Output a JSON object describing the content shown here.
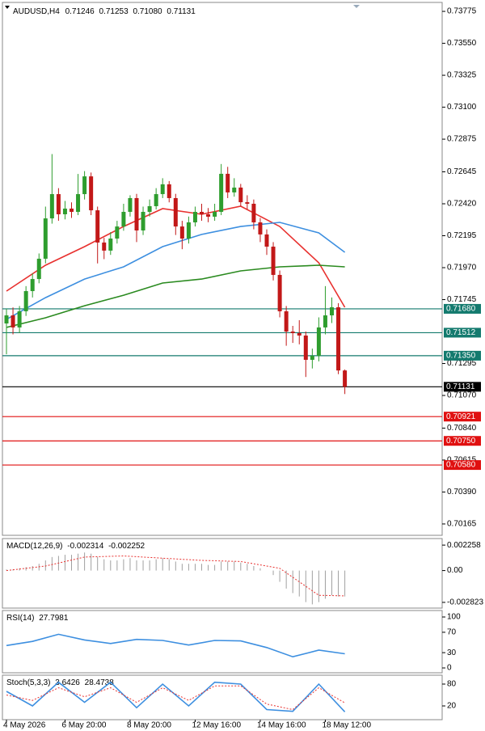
{
  "chart_data": [
    {
      "type": "candlestick",
      "header": {
        "symbol": "AUDUSD,H4",
        "values": [
          0.71246,
          0.71253,
          0.7108,
          0.71131
        ],
        "value_labels": [
          "0.71246",
          "0.71253",
          "0.71080",
          "0.71131"
        ]
      },
      "categories": [
        "4 May 2026",
        null,
        null,
        null,
        null,
        null,
        null,
        null,
        null,
        "6 May 20:00",
        null,
        null,
        null,
        null,
        null,
        null,
        null,
        null,
        null,
        "8 May 20:00",
        null,
        null,
        null,
        null,
        null,
        null,
        null,
        null,
        null,
        "12 May 16:00",
        null,
        null,
        null,
        null,
        null,
        null,
        null,
        null,
        null,
        "14 May 16:00",
        null,
        null,
        null,
        null,
        null,
        null,
        null,
        null,
        null,
        "18 May 12:00",
        null,
        null,
        null
      ],
      "open": [
        0.71577,
        0.71634,
        0.71549,
        0.71663,
        0.71805,
        0.7189,
        0.72033,
        0.72317,
        0.72488,
        0.72346,
        0.72386,
        0.72363,
        0.72488,
        0.72613,
        0.72374,
        0.72147,
        0.7209,
        0.72175,
        0.7226,
        0.72363,
        0.7246,
        0.72232,
        0.72363,
        0.72403,
        0.72488,
        0.72557,
        0.7246,
        0.7226,
        0.72175,
        0.72289,
        0.72363,
        0.72346,
        0.72329,
        0.72363,
        0.72631,
        0.725,
        0.72534,
        0.72431,
        0.7242,
        0.72289,
        0.72204,
        0.72118,
        0.71919,
        0.71663,
        0.7152,
        0.71509,
        0.71492,
        0.71321,
        0.71349,
        0.71549,
        0.71634,
        0.71691,
        0.71246
      ],
      "high": [
        0.7168,
        0.7169,
        0.717,
        0.7184,
        0.7193,
        0.7207,
        0.724,
        0.7277,
        0.7253,
        0.7244,
        0.7243,
        0.7263,
        0.7265,
        0.7264,
        0.724,
        0.7218,
        0.7222,
        0.723,
        0.7242,
        0.7248,
        0.7249,
        0.724,
        0.7245,
        0.7253,
        0.726,
        0.7258,
        0.7249,
        0.723,
        0.7233,
        0.724,
        0.7242,
        0.7239,
        0.7242,
        0.727,
        0.7268,
        0.726,
        0.7256,
        0.7248,
        0.7245,
        0.7232,
        0.7224,
        0.7215,
        0.7195,
        0.717,
        0.7156,
        0.716,
        0.7152,
        0.714,
        0.7162,
        0.7184,
        0.7176,
        0.7172,
        0.71253
      ],
      "low": [
        0.7136,
        0.715,
        0.7151,
        0.7163,
        0.7176,
        0.7186,
        0.72,
        0.7228,
        0.723,
        0.7231,
        0.7232,
        0.7234,
        0.7245,
        0.7234,
        0.72,
        0.7203,
        0.7206,
        0.7214,
        0.7223,
        0.7233,
        0.7215,
        0.722,
        0.7233,
        0.7238,
        0.7246,
        0.7243,
        0.722,
        0.721,
        0.7214,
        0.7226,
        0.723,
        0.7229,
        0.723,
        0.7234,
        0.7246,
        0.7247,
        0.724,
        0.7238,
        0.7224,
        0.7215,
        0.7206,
        0.7188,
        0.7162,
        0.7142,
        0.7144,
        0.7143,
        0.712,
        0.7126,
        0.7131,
        0.715,
        0.7158,
        0.7122,
        0.7108
      ],
      "close": [
        0.71634,
        0.71549,
        0.71663,
        0.71805,
        0.7189,
        0.72033,
        0.72317,
        0.72488,
        0.72346,
        0.72386,
        0.72363,
        0.72488,
        0.72613,
        0.72374,
        0.72147,
        0.7209,
        0.72175,
        0.7226,
        0.72363,
        0.7246,
        0.72232,
        0.72363,
        0.72403,
        0.72488,
        0.72557,
        0.7246,
        0.7226,
        0.72175,
        0.72289,
        0.72363,
        0.72346,
        0.72329,
        0.72363,
        0.72631,
        0.725,
        0.72534,
        0.72431,
        0.7242,
        0.72289,
        0.72204,
        0.72118,
        0.71919,
        0.71663,
        0.7152,
        0.71509,
        0.71492,
        0.71321,
        0.71349,
        0.71549,
        0.71634,
        0.71691,
        0.71246,
        0.71131
      ],
      "up_color": "#2e9d2e",
      "down_color": "#c21818",
      "ma": [
        {
          "color": "#e8312f",
          "x": [
            0,
            6,
            12,
            18,
            24,
            30,
            36,
            42,
            48,
            52
          ],
          "values": [
            0.71805,
            0.71987,
            0.72118,
            0.7226,
            0.72386,
            0.72346,
            0.72403,
            0.7226,
            0.72004,
            0.71691
          ]
        },
        {
          "color": "#3d8fe0",
          "x": [
            0,
            6,
            12,
            18,
            24,
            30,
            36,
            42,
            48,
            52
          ],
          "values": [
            0.71606,
            0.71759,
            0.7189,
            0.71976,
            0.72118,
            0.72204,
            0.7226,
            0.72289,
            0.72215,
            0.72078
          ]
        },
        {
          "color": "#2a8a1f",
          "x": [
            0,
            6,
            12,
            18,
            24,
            30,
            36,
            42,
            48,
            52
          ],
          "values": [
            0.71549,
            0.71617,
            0.71702,
            0.71776,
            0.71862,
            0.7189,
            0.71947,
            0.71976,
            0.71987,
            0.71976
          ]
        }
      ],
      "levels": [
        {
          "value": 0.7168,
          "label": "0.71680",
          "color": "#137a6e"
        },
        {
          "value": 0.71512,
          "color": "#137a6e"
        },
        {
          "value": 0.7135,
          "label": "0.71350",
          "color": "#137a6e"
        },
        {
          "value": 0.71131,
          "color": "#000000"
        },
        {
          "value": 0.70921,
          "color": "#e01010"
        },
        {
          "value": 0.7075,
          "label": "0.70750",
          "color": "#e01010"
        },
        {
          "value": 0.7058,
          "label": "0.70580",
          "color": "#e01010"
        }
      ],
      "ylim": [
        0.70085,
        0.73838
      ],
      "yticks": [
        0.73775,
        {
          "value": 0.7355,
          "label": "0.73550"
        },
        0.73325,
        {
          "value": 0.731,
          "label": "0.73100"
        },
        0.72875,
        0.72645,
        {
          "value": 0.7242,
          "label": "0.72420"
        },
        0.72195,
        {
          "value": 0.7197,
          "label": "0.71970"
        },
        0.71745,
        0.71295,
        {
          "value": 0.7107,
          "label": "0.71070"
        },
        {
          "value": 0.7084,
          "label": "0.70840"
        },
        0.70615,
        {
          "value": 0.7039,
          "label": "0.70390"
        },
        0.70165
      ]
    },
    {
      "type": "macd",
      "title": "MACD(12,26,9)",
      "main_value": -0.002314,
      "signal_value": -0.002252,
      "values": [
        0.0001,
        0.0001,
        0.0002,
        0.0003,
        0.0004,
        0.0006,
        0.0009,
        0.0012,
        0.0013,
        0.0014,
        0.0014,
        0.0015,
        0.0016,
        0.0015,
        0.0012,
        0.001,
        0.0009,
        0.0009,
        0.001,
        0.0011,
        0.0009,
        0.0009,
        0.0009,
        0.001,
        0.0011,
        0.001,
        0.0008,
        0.0006,
        0.0006,
        0.0006,
        0.0006,
        0.0005,
        0.0005,
        0.0008,
        0.0008,
        0.0008,
        0.0007,
        0.0006,
        0.0004,
        0.0002,
        0,
        -0.0004,
        -0.001,
        -0.0016,
        -0.002,
        -0.0023,
        -0.0028,
        -0.003,
        -0.0028,
        -0.0025,
        -0.0022,
        -0.0023,
        -0.0023
      ],
      "color": "#a0a0a0",
      "signal": {
        "color": "#e8312f",
        "x": [
          0,
          6,
          12,
          18,
          24,
          30,
          36,
          42,
          48,
          52
        ],
        "values": [
          0,
          0.0004,
          0.0012,
          0.0013,
          0.0011,
          0.0009,
          0.0008,
          0.0002,
          -0.0022,
          -0.00225
        ]
      },
      "ylim": [
        -0.00333,
        0.00284
      ],
      "yticks": [
        0.002258,
        {
          "value": 0,
          "label": "0.00"
        },
        -0.002823
      ]
    },
    {
      "type": "rsi",
      "title": "RSI(14)",
      "current": 27.7981,
      "x": [
        0,
        4,
        8,
        12,
        16,
        20,
        24,
        28,
        32,
        36,
        40,
        44,
        48,
        52
      ],
      "values": [
        44,
        52,
        66,
        55,
        48,
        56,
        54,
        45,
        54,
        53,
        40,
        22,
        35,
        27.7981
      ],
      "color": "#3d8fe0",
      "ylim": [
        -9.5,
        112.7
      ],
      "yticks": [
        100,
        70,
        30,
        0
      ]
    },
    {
      "type": "stochastic",
      "title": "Stoch(5,3,3)",
      "main_current": 3.6426,
      "signal_current": 28.4738,
      "x": [
        0,
        4,
        8,
        12,
        16,
        20,
        24,
        28,
        32,
        36,
        40,
        44,
        48,
        52
      ],
      "main": {
        "color": "#3d8fe0",
        "values": [
          60,
          20,
          85,
          30,
          85,
          15,
          80,
          20,
          85,
          80,
          10,
          5,
          80,
          3.6426
        ]
      },
      "signal": {
        "color": "#e8312f",
        "values": [
          50,
          35,
          70,
          45,
          70,
          30,
          70,
          35,
          75,
          75,
          25,
          10,
          70,
          28.4738
        ]
      },
      "ylim": [
        -17.8,
        104.4
      ],
      "yticks": [
        80,
        20
      ]
    }
  ]
}
